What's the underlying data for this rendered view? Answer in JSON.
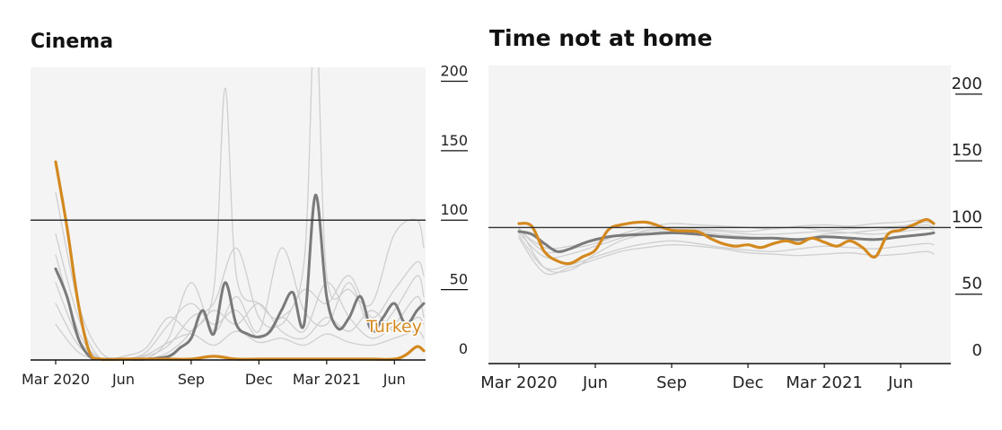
{
  "chart_data": [
    {
      "type": "line",
      "title": "Cinema",
      "x_ticks": [
        "Mar 2020",
        "Jun",
        "Sep",
        "Dec",
        "Mar 2021",
        "Jun"
      ],
      "y_ticks": [
        "0",
        "50",
        "100",
        "150",
        "200"
      ],
      "ylim": [
        0,
        210
      ],
      "baseline": 100,
      "annotation": "Turkey",
      "colors": {
        "highlight": "#d4891f",
        "average": "#7a7a7a",
        "others": "#cfcfcf",
        "background": "#f4f4f4"
      },
      "series": [
        {
          "role": "highlight",
          "name": "Turkey",
          "x": [
            0,
            0.5,
            1,
            1.5,
            2,
            3,
            4,
            5,
            6,
            7,
            8,
            9,
            10,
            11,
            12,
            13,
            14,
            15,
            15.5,
            16,
            16.3
          ],
          "values": [
            142,
            95,
            40,
            5,
            0,
            0,
            0,
            0,
            0,
            2,
            0,
            0,
            0,
            0,
            0,
            0,
            0,
            0,
            3,
            9,
            6
          ]
        },
        {
          "role": "average",
          "x": [
            0,
            0.5,
            1,
            1.5,
            2,
            3,
            4,
            5,
            5.5,
            6,
            6.5,
            7,
            7.5,
            8,
            8.5,
            9,
            9.5,
            10,
            10.5,
            11,
            11.5,
            12,
            12.5,
            13,
            13.5,
            14,
            14.5,
            15,
            15.5,
            16,
            16.3
          ],
          "values": [
            65,
            45,
            15,
            2,
            0,
            0,
            0,
            2,
            8,
            15,
            35,
            18,
            55,
            25,
            18,
            16,
            20,
            35,
            48,
            25,
            118,
            45,
            22,
            30,
            45,
            20,
            30,
            40,
            25,
            35,
            40
          ]
        },
        {
          "role": "other",
          "x": [
            0,
            1,
            2,
            3,
            4,
            5,
            6,
            7,
            7.5,
            8,
            9,
            10,
            11,
            11.5,
            12,
            13,
            14,
            15,
            16,
            16.3
          ],
          "values": [
            120,
            40,
            5,
            0,
            0,
            5,
            20,
            50,
            195,
            60,
            40,
            30,
            70,
            250,
            60,
            50,
            40,
            90,
            100,
            80
          ]
        },
        {
          "role": "other",
          "x": [
            0,
            1,
            2,
            3,
            4,
            5,
            6,
            7,
            8,
            9,
            10,
            11,
            12,
            13,
            14,
            15,
            16,
            16.3
          ],
          "values": [
            90,
            30,
            0,
            0,
            2,
            10,
            30,
            40,
            80,
            30,
            25,
            50,
            40,
            60,
            30,
            50,
            70,
            60
          ]
        },
        {
          "role": "other",
          "x": [
            0,
            1,
            2,
            3,
            4,
            5,
            6,
            7,
            8,
            9,
            10,
            11,
            12,
            13,
            14,
            15,
            16,
            16.3
          ],
          "values": [
            75,
            20,
            0,
            0,
            0,
            15,
            55,
            20,
            45,
            20,
            80,
            35,
            25,
            55,
            20,
            35,
            60,
            45
          ]
        },
        {
          "role": "other",
          "x": [
            0,
            1,
            2,
            3,
            4,
            5,
            6,
            7,
            8,
            9,
            10,
            11,
            12,
            13,
            14,
            15,
            16,
            16.3
          ],
          "values": [
            55,
            15,
            0,
            0,
            5,
            25,
            40,
            25,
            35,
            15,
            30,
            20,
            55,
            30,
            15,
            25,
            45,
            30
          ]
        },
        {
          "role": "other",
          "x": [
            0,
            1,
            2,
            3,
            4,
            5,
            6,
            7,
            8,
            9,
            10,
            11,
            12,
            13,
            14,
            15,
            16,
            16.3
          ],
          "values": [
            40,
            10,
            0,
            2,
            8,
            30,
            20,
            35,
            25,
            40,
            20,
            15,
            30,
            20,
            35,
            20,
            30,
            25
          ]
        },
        {
          "role": "other",
          "x": [
            0,
            1,
            2,
            3,
            4,
            5,
            6,
            7,
            8,
            9,
            10,
            11,
            12,
            13,
            14,
            15,
            16,
            16.3
          ],
          "values": [
            25,
            5,
            0,
            0,
            3,
            12,
            18,
            10,
            20,
            12,
            15,
            10,
            18,
            12,
            10,
            15,
            20,
            15
          ]
        }
      ]
    },
    {
      "type": "line",
      "title": "Time not at home",
      "x_ticks": [
        "Mar 2020",
        "Jun",
        "Sep",
        "Dec",
        "Mar 2021",
        "Jun"
      ],
      "y_ticks": [
        "0",
        "50",
        "100",
        "150",
        "200"
      ],
      "ylim": [
        0,
        210
      ],
      "baseline": 100,
      "colors": {
        "highlight": "#d4891f",
        "average": "#7a7a7a",
        "others": "#cfcfcf",
        "background": "#f4f4f4"
      },
      "series": [
        {
          "role": "highlight",
          "name": "Turkey",
          "x": [
            0,
            0.5,
            1,
            1.5,
            2,
            2.5,
            3,
            3.5,
            4,
            5,
            6,
            7,
            7.5,
            8,
            8.5,
            9,
            9.5,
            10,
            10.5,
            11,
            11.5,
            12,
            12.5,
            13,
            13.5,
            14,
            14.5,
            15,
            15.5,
            16,
            16.3
          ],
          "values": [
            103,
            101,
            82,
            75,
            73,
            78,
            83,
            98,
            102,
            104,
            98,
            97,
            92,
            88,
            86,
            87,
            85,
            88,
            90,
            88,
            92,
            89,
            86,
            90,
            85,
            78,
            95,
            98,
            102,
            106,
            103
          ]
        },
        {
          "role": "average",
          "x": [
            0,
            0.5,
            1,
            1.5,
            2,
            2.5,
            3,
            3.5,
            4,
            5,
            6,
            7,
            8,
            9,
            10,
            11,
            12,
            13,
            14,
            15,
            16,
            16.3
          ],
          "values": [
            97,
            95,
            88,
            82,
            84,
            88,
            91,
            93,
            94,
            95,
            96,
            95,
            93,
            92,
            92,
            91,
            93,
            92,
            91,
            93,
            95,
            96
          ]
        },
        {
          "role": "other",
          "x": [
            0,
            1,
            2,
            3,
            4,
            5,
            6,
            7,
            8,
            9,
            10,
            11,
            12,
            13,
            14,
            15,
            16,
            16.3
          ],
          "values": [
            100,
            70,
            68,
            80,
            90,
            95,
            98,
            97,
            95,
            93,
            92,
            90,
            95,
            96,
            98,
            100,
            102,
            100
          ]
        },
        {
          "role": "other",
          "x": [
            0,
            1,
            2,
            3,
            4,
            5,
            6,
            7,
            8,
            9,
            10,
            11,
            12,
            13,
            14,
            15,
            16,
            16.3
          ],
          "values": [
            96,
            78,
            80,
            86,
            92,
            98,
            100,
            99,
            98,
            97,
            99,
            100,
            98,
            99,
            100,
            101,
            104,
            102
          ]
        },
        {
          "role": "other",
          "x": [
            0,
            1,
            2,
            3,
            4,
            5,
            6,
            7,
            8,
            9,
            10,
            11,
            12,
            13,
            14,
            15,
            16,
            16.3
          ],
          "values": [
            94,
            70,
            72,
            78,
            84,
            88,
            90,
            88,
            85,
            83,
            82,
            84,
            86,
            85,
            84,
            86,
            88,
            87
          ]
        },
        {
          "role": "other",
          "x": [
            0,
            1,
            2,
            3,
            4,
            5,
            6,
            7,
            8,
            9,
            10,
            11,
            12,
            13,
            14,
            15,
            16,
            16.3
          ],
          "values": [
            98,
            85,
            86,
            90,
            94,
            97,
            99,
            98,
            97,
            95,
            95,
            96,
            97,
            96,
            95,
            97,
            99,
            98
          ]
        },
        {
          "role": "other",
          "x": [
            0,
            1,
            2,
            3,
            4,
            5,
            6,
            7,
            8,
            9,
            10,
            11,
            12,
            13,
            14,
            15,
            16,
            16.3
          ],
          "values": [
            92,
            66,
            70,
            76,
            82,
            85,
            87,
            86,
            84,
            81,
            80,
            79,
            80,
            81,
            79,
            80,
            82,
            80
          ]
        },
        {
          "role": "other",
          "x": [
            0,
            1,
            2,
            3,
            4,
            5,
            6,
            7,
            8,
            9,
            10,
            11,
            12,
            13,
            14,
            15,
            16,
            16.3
          ],
          "values": [
            99,
            82,
            84,
            88,
            95,
            100,
            103,
            102,
            101,
            100,
            99,
            101,
            102,
            101,
            103,
            104,
            106,
            104
          ]
        }
      ]
    }
  ]
}
